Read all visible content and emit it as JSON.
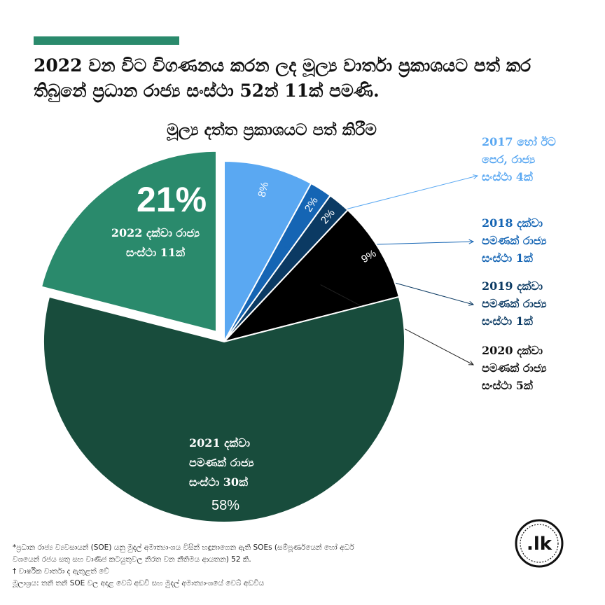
{
  "headline": "2022 වන විට විගණනය කරන ලද මූල්‍ය වාර්තා ප්‍රකාශයට පත් කර තිබුනේ ප්‍රධාන රාජ්‍ය සංස්ථා 52න් 11ක් පමණි.",
  "logo_text": ".lk",
  "footnotes": [
    "*ප්‍රධාන රාජ්‍ය ව්‍යවසායන් (SOE) යනු මුදල් අමාත්‍යාංශය විසින් හඳුනාගෙන ඇති SOEs (සම්පූර්ණයෙන් හෝ අර්ධ",
    "වශයෙන් රජය සතු සහ වාණිජ කටයුතුවල නිරත වන නීතිමය ආයතන) 52 කි.",
    "† වාර්ෂික වාර්තා ද ඇතුළත් වේ",
    "මූලාශ්‍රය: තනි තනි SOE වල අදාළ වෙබ් අඩවි සහ මුදල් අමාත්‍යාංශයේ වෙබ් අඩවිය"
  ],
  "colors": {
    "accent": "#2a8a6c",
    "y2017": "#5aa8f2",
    "y2018": "#1565b4",
    "y2019": "#0b3a63",
    "y2020": "#000000",
    "y2021": "#184c3c",
    "y2022": "#2a8a6c"
  },
  "chart_data": {
    "type": "pie",
    "title": "මූල්‍ය දත්ත ප්‍රකාශයට පත් කිරීම",
    "slices": [
      {
        "key": "y2017",
        "value": 8,
        "pct_label": "8%",
        "label_lines": [
          "2017 හෝ ඊට",
          "පෙර, රාජ්‍ය",
          "සංස්ථා 4ක්"
        ],
        "color": "#5aa8f2",
        "count": 4
      },
      {
        "key": "y2018",
        "value": 2,
        "pct_label": "2%",
        "label_lines": [
          "2018 දක්වා",
          "පමණක් රාජ්‍ය",
          "සංස්ථා 1ක්"
        ],
        "color": "#1565b4",
        "count": 1
      },
      {
        "key": "y2019",
        "value": 2,
        "pct_label": "2%",
        "label_lines": [
          "2019 දක්වා",
          "පමණක් රාජ්‍ය",
          "සංස්ථා 1ක්"
        ],
        "color": "#0b3a63",
        "count": 1
      },
      {
        "key": "y2020",
        "value": 9,
        "pct_label": "9%",
        "label_lines": [
          "2020 දක්වා",
          "පමණක් රාජ්‍ය",
          "සංස්ථා 5ක්"
        ],
        "color": "#000000",
        "count": 5
      },
      {
        "key": "y2021",
        "value": 58,
        "pct_label": "58%",
        "label_lines": [
          "2021 දක්වා",
          "පමණක් රාජ්‍ය",
          "සංස්ථා 30ක්"
        ],
        "color": "#184c3c",
        "count": 30
      },
      {
        "key": "y2022",
        "value": 21,
        "pct_label": "21%",
        "label_lines": [
          "2022 දක්වා රාජ්‍ය",
          "සංස්ථා 11ක්"
        ],
        "color": "#2a8a6c",
        "count": 11,
        "exploded": true
      }
    ]
  }
}
